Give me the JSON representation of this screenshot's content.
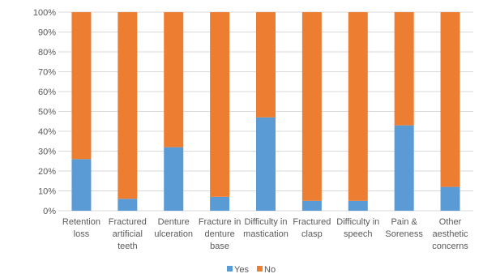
{
  "chart_data": {
    "type": "bar",
    "stacked": true,
    "percent": true,
    "categories": [
      [
        "Retention",
        "loss"
      ],
      [
        "Fractured",
        "artificial",
        "teeth"
      ],
      [
        "Denture",
        "ulceration"
      ],
      [
        "Fracture in",
        "denture",
        "base"
      ],
      [
        "Difficulty in",
        "mastication"
      ],
      [
        "Fractured",
        "clasp"
      ],
      [
        "Difficulty in",
        "speech"
      ],
      [
        "Pain &",
        "Soreness"
      ],
      [
        "Other",
        "aesthetic",
        "concerns"
      ]
    ],
    "series": [
      {
        "name": "Yes",
        "color": "#5b9bd5",
        "values": [
          26,
          6,
          32,
          7,
          47,
          5,
          5,
          43,
          12
        ]
      },
      {
        "name": "No",
        "color": "#ed7d31",
        "values": [
          74,
          94,
          68,
          93,
          53,
          95,
          95,
          57,
          88
        ]
      }
    ],
    "yticks": [
      "0%",
      "10%",
      "20%",
      "30%",
      "40%",
      "50%",
      "60%",
      "70%",
      "80%",
      "90%",
      "100%"
    ],
    "ylim": [
      0,
      100
    ],
    "grid": true,
    "legend_position": "bottom"
  }
}
